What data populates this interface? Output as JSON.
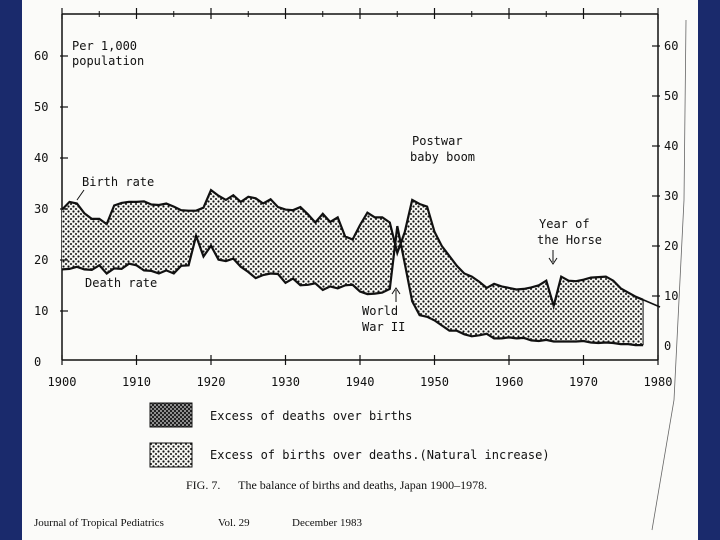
{
  "chart_data": {
    "type": "area",
    "title": "",
    "units_label_line1": "Per 1,000",
    "units_label_line2": "population",
    "x_ticks": [
      "1900",
      "1910",
      "1920",
      "1930",
      "1940",
      "1950",
      "1960",
      "1970",
      "1980"
    ],
    "y_ticks_left": [
      "0",
      "10",
      "20",
      "30",
      "40",
      "50",
      "60"
    ],
    "y_ticks_right": [
      "0",
      "10",
      "20",
      "30",
      "40",
      "50",
      "60"
    ],
    "xlim": [
      1900,
      1980
    ],
    "ylim": [
      0,
      60
    ],
    "series": [
      {
        "name": "Birth rate",
        "x": [
          1900,
          1901,
          1902,
          1903,
          1904,
          1905,
          1906,
          1907,
          1908,
          1909,
          1910,
          1911,
          1912,
          1913,
          1914,
          1915,
          1916,
          1917,
          1918,
          1919,
          1920,
          1921,
          1922,
          1923,
          1924,
          1925,
          1926,
          1927,
          1928,
          1929,
          1930,
          1931,
          1932,
          1933,
          1934,
          1935,
          1936,
          1937,
          1938,
          1939,
          1940,
          1941,
          1942,
          1943,
          1944,
          1945,
          1946,
          1947,
          1948,
          1949,
          1950,
          1951,
          1952,
          1953,
          1954,
          1955,
          1956,
          1957,
          1958,
          1959,
          1960,
          1961,
          1962,
          1963,
          1964,
          1965,
          1966,
          1967,
          1968,
          1969,
          1970,
          1971,
          1972,
          1973,
          1974,
          1975,
          1976,
          1977,
          1978
        ],
        "values": [
          32.4,
          33.9,
          33.6,
          31.7,
          30.6,
          30.6,
          29.6,
          33.2,
          33.7,
          33.9,
          33.9,
          34.0,
          33.4,
          33.3,
          33.6,
          33.0,
          32.3,
          32.2,
          32.2,
          32.8,
          36.2,
          35.1,
          34.3,
          35.2,
          33.9,
          34.9,
          34.6,
          33.6,
          34.4,
          32.9,
          32.4,
          32.3,
          32.9,
          31.5,
          29.9,
          31.6,
          30.0,
          30.9,
          27.2,
          26.6,
          29.4,
          31.8,
          30.9,
          30.9,
          29.9,
          24.0,
          28.0,
          34.3,
          33.5,
          33.0,
          28.1,
          25.3,
          23.4,
          21.5,
          20.0,
          19.4,
          18.4,
          17.2,
          18.0,
          17.5,
          17.2,
          16.9,
          17.0,
          17.3,
          17.7,
          18.6,
          13.7,
          19.4,
          18.6,
          18.5,
          18.8,
          19.2,
          19.3,
          19.4,
          18.6,
          17.1,
          16.3,
          15.5,
          14.9
        ]
      },
      {
        "name": "Death rate",
        "x": [
          1900,
          1901,
          1902,
          1903,
          1904,
          1905,
          1906,
          1907,
          1908,
          1909,
          1910,
          1911,
          1912,
          1913,
          1914,
          1915,
          1916,
          1917,
          1918,
          1919,
          1920,
          1921,
          1922,
          1923,
          1924,
          1925,
          1926,
          1927,
          1928,
          1929,
          1930,
          1931,
          1932,
          1933,
          1934,
          1935,
          1936,
          1937,
          1938,
          1939,
          1940,
          1941,
          1942,
          1943,
          1944,
          1945,
          1946,
          1947,
          1948,
          1949,
          1950,
          1951,
          1952,
          1953,
          1954,
          1955,
          1956,
          1957,
          1958,
          1959,
          1960,
          1961,
          1962,
          1963,
          1964,
          1965,
          1966,
          1967,
          1968,
          1969,
          1970,
          1971,
          1972,
          1973,
          1974,
          1975,
          1976,
          1977,
          1978
        ],
        "values": [
          20.8,
          20.9,
          21.3,
          20.8,
          20.7,
          21.6,
          20.0,
          21.0,
          20.9,
          21.9,
          21.6,
          20.6,
          20.5,
          20.0,
          20.6,
          20.0,
          21.5,
          21.6,
          27.3,
          23.3,
          25.4,
          22.7,
          22.4,
          22.9,
          21.3,
          20.3,
          19.1,
          19.7,
          20.0,
          19.9,
          18.2,
          19.0,
          17.7,
          17.8,
          18.1,
          16.8,
          17.5,
          17.1,
          17.7,
          17.8,
          16.5,
          16.0,
          16.1,
          16.3,
          17.0,
          29.2,
          22.0,
          14.6,
          11.9,
          11.6,
          10.9,
          9.9,
          8.9,
          8.9,
          8.2,
          7.8,
          8.0,
          8.3,
          7.4,
          7.4,
          7.6,
          7.4,
          7.5,
          7.0,
          6.9,
          7.1,
          6.8,
          6.8,
          6.8,
          6.8,
          6.9,
          6.6,
          6.5,
          6.6,
          6.5,
          6.3,
          6.3,
          6.1,
          6.1
        ]
      }
    ],
    "annotations": {
      "birth_rate": "Birth rate",
      "death_rate": "Death rate",
      "postwar_line1": "Postwar",
      "postwar_line2": "baby boom",
      "ww2_line1": "World",
      "ww2_line2": "War II",
      "horse_line1": "Year of",
      "horse_line2": "the Horse"
    },
    "legend": {
      "deaths_excess": "Excess of deaths over births",
      "births_excess": "Excess of births over deaths.(Natural increase)"
    },
    "caption": {
      "fig": "FIG. 7.",
      "text": "The balance of births and deaths, Japan 1900–1978."
    }
  },
  "footer": {
    "journal": "Journal of Tropical Pediatrics",
    "vol": "Vol. 29",
    "date": "December 1983"
  }
}
